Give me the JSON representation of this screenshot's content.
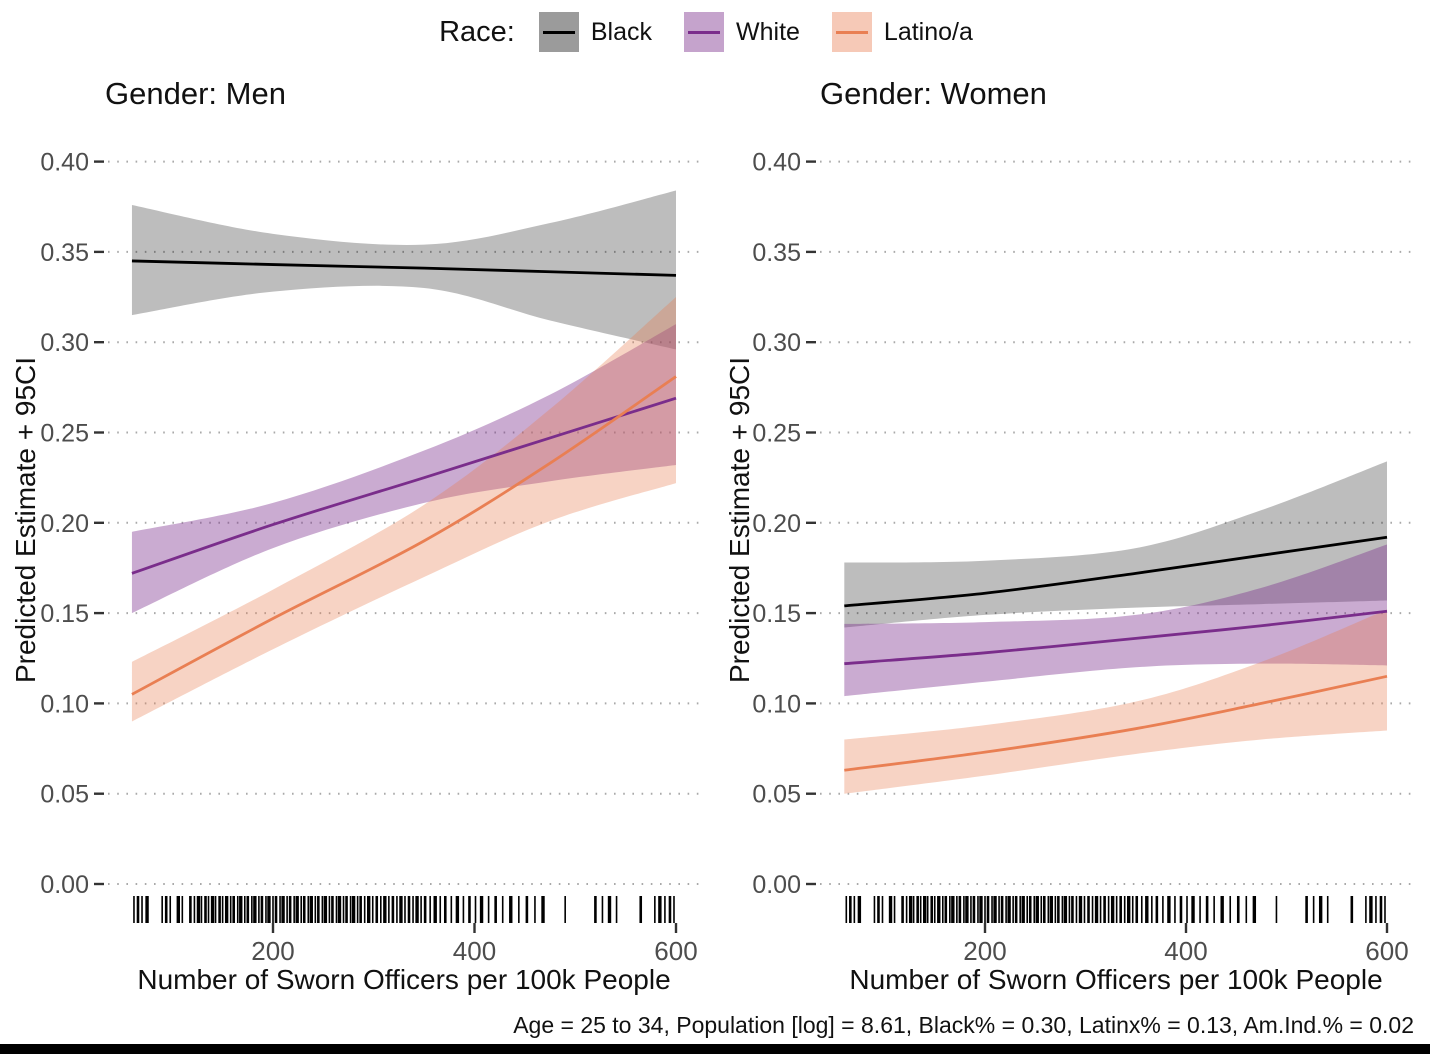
{
  "page": {
    "background": "#ffffff",
    "bottom_bar_color": "#000000"
  },
  "legend": {
    "title": "Race:",
    "entries": [
      {
        "label": "Black",
        "line_color": "#000000",
        "band_color": "#000000",
        "band_alpha": 0.26
      },
      {
        "label": "White",
        "line_color": "#7A2D8B",
        "band_color": "#7A2D8B",
        "band_alpha": 0.4
      },
      {
        "label": "Latino/a",
        "line_color": "#E97F53",
        "band_color": "#E97F53",
        "band_alpha": 0.34
      }
    ]
  },
  "caption": "Age = 25 to 34, Population [log] = 8.61, Black% = 0.30, Latinx% = 0.13, Am.Ind.% = 0.02",
  "chart_data": {
    "type": "line",
    "title": "",
    "xlabel": "Number of Sworn Officers per 100k People",
    "ylabel": "Predicted Estimate + 95CI",
    "legend_position": "top",
    "grid": "horizontal dotted",
    "x": [
      60,
      200,
      350,
      475,
      600
    ],
    "xlim": [
      36,
      625
    ],
    "ylim": [
      0,
      0.42
    ],
    "xticks": {
      "values": [
        200,
        400,
        600
      ],
      "labels": [
        "200",
        "400",
        "600"
      ]
    },
    "yticks": {
      "values": [
        0.0,
        0.05,
        0.1,
        0.15,
        0.2,
        0.25,
        0.3,
        0.35,
        0.4
      ],
      "labels": [
        "0.00",
        "0.05",
        "0.10",
        "0.15",
        "0.20",
        "0.25",
        "0.30",
        "0.35",
        "0.40"
      ]
    },
    "facets": [
      {
        "label": "Gender: Men",
        "series": [
          {
            "name": "Black",
            "line": [
              0.345,
              0.343,
              0.341,
              0.339,
              0.337
            ],
            "upper": [
              0.376,
              0.36,
              0.354,
              0.366,
              0.384
            ],
            "lower": [
              0.315,
              0.328,
              0.33,
              0.312,
              0.296
            ]
          },
          {
            "name": "White",
            "line": [
              0.172,
              0.199,
              0.225,
              0.247,
              0.269
            ],
            "upper": [
              0.195,
              0.211,
              0.24,
              0.271,
              0.31
            ],
            "lower": [
              0.15,
              0.186,
              0.211,
              0.223,
              0.232
            ]
          },
          {
            "name": "Latino/a",
            "line": [
              0.105,
              0.147,
              0.19,
              0.233,
              0.281
            ],
            "upper": [
              0.123,
              0.163,
              0.21,
              0.263,
              0.325
            ],
            "lower": [
              0.09,
              0.13,
              0.17,
              0.201,
              0.222
            ]
          }
        ]
      },
      {
        "label": "Gender: Women",
        "series": [
          {
            "name": "Black",
            "line": [
              0.154,
              0.161,
              0.172,
              0.182,
              0.192
            ],
            "upper": [
              0.178,
              0.179,
              0.186,
              0.207,
              0.234
            ],
            "lower": [
              0.142,
              0.149,
              0.153,
              0.155,
              0.157
            ]
          },
          {
            "name": "White",
            "line": [
              0.122,
              0.128,
              0.136,
              0.143,
              0.151
            ],
            "upper": [
              0.144,
              0.145,
              0.149,
              0.164,
              0.188
            ],
            "lower": [
              0.104,
              0.112,
              0.12,
              0.122,
              0.121
            ]
          },
          {
            "name": "Latino/a",
            "line": [
              0.063,
              0.073,
              0.086,
              0.1,
              0.115
            ],
            "upper": [
              0.08,
              0.088,
              0.101,
              0.123,
              0.152
            ],
            "lower": [
              0.05,
              0.06,
              0.072,
              0.08,
              0.085
            ]
          }
        ]
      }
    ],
    "rug_x": [
      62,
      66,
      70,
      75,
      90,
      94,
      98,
      106,
      110,
      118,
      122,
      126,
      129,
      133,
      136,
      140,
      143,
      147,
      150,
      154,
      158,
      161,
      165,
      168,
      172,
      175,
      179,
      182,
      186,
      189,
      193,
      196,
      200,
      203,
      207,
      210,
      214,
      217,
      221,
      224,
      228,
      231,
      235,
      238,
      242,
      245,
      249,
      252,
      256,
      259,
      263,
      266,
      270,
      273,
      277,
      280,
      284,
      287,
      291,
      295,
      299,
      303,
      307,
      311,
      315,
      319,
      323,
      327,
      331,
      335,
      339,
      343,
      347,
      351,
      356,
      361,
      366,
      371,
      377,
      383,
      389,
      395,
      401,
      407,
      414,
      421,
      428,
      436,
      444,
      452,
      460,
      468,
      490,
      520,
      527,
      534,
      541,
      565,
      579,
      584,
      589,
      594,
      598
    ]
  }
}
